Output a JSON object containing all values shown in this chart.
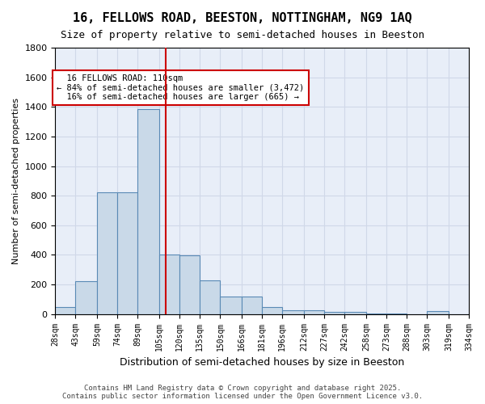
{
  "title1": "16, FELLOWS ROAD, BEESTON, NOTTINGHAM, NG9 1AQ",
  "title2": "Size of property relative to semi-detached houses in Beeston",
  "xlabel": "Distribution of semi-detached houses by size in Beeston",
  "ylabel": "Number of semi-detached properties",
  "property_size": 110,
  "property_label": "16 FELLOWS ROAD: 110sqm",
  "pct_smaller": 84,
  "n_smaller": 3472,
  "pct_larger": 16,
  "n_larger": 665,
  "bin_edges": [
    28,
    43,
    59,
    74,
    89,
    105,
    120,
    135,
    150,
    166,
    181,
    196,
    212,
    227,
    242,
    258,
    273,
    288,
    303,
    319,
    334
  ],
  "bin_labels": [
    "28sqm",
    "43sqm",
    "59sqm",
    "74sqm",
    "89sqm",
    "105sqm",
    "120sqm",
    "135sqm",
    "150sqm",
    "166sqm",
    "181sqm",
    "196sqm",
    "212sqm",
    "227sqm",
    "242sqm",
    "258sqm",
    "273sqm",
    "288sqm",
    "303sqm",
    "319sqm",
    "334sqm"
  ],
  "counts": [
    50,
    220,
    825,
    825,
    1385,
    400,
    395,
    225,
    120,
    120,
    45,
    25,
    25,
    15,
    15,
    5,
    5,
    0,
    20,
    0
  ],
  "bar_color": "#c9d9e8",
  "bar_edge_color": "#5a8ab5",
  "vline_x": 110,
  "vline_color": "#cc0000",
  "annotation_box_color": "#cc0000",
  "grid_color": "#d0d8e8",
  "background_color": "#e8eef8",
  "footer1": "Contains HM Land Registry data © Crown copyright and database right 2025.",
  "footer2": "Contains public sector information licensed under the Open Government Licence v3.0.",
  "ylim": [
    0,
    1800
  ]
}
